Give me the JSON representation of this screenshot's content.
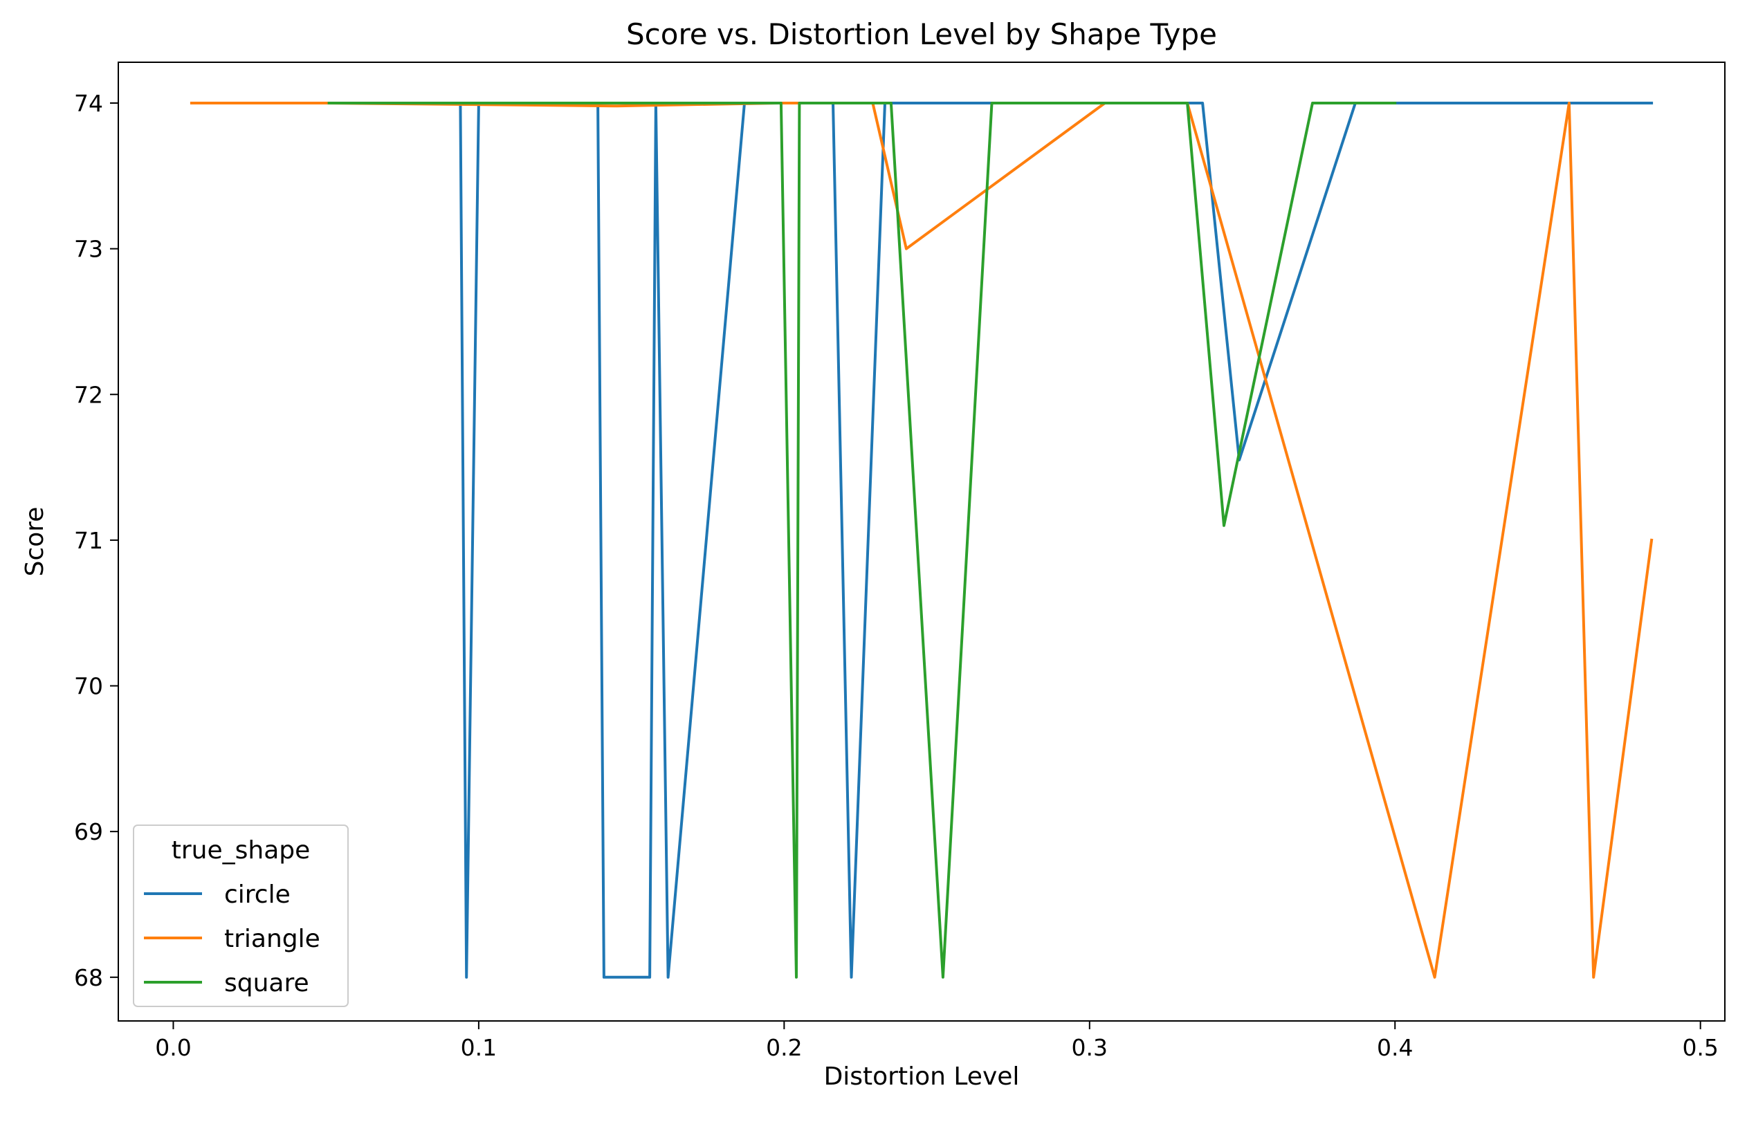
{
  "chart_data": {
    "type": "line",
    "title": "Score vs. Distortion Level by Shape Type",
    "xlabel": "Distortion Level",
    "ylabel": "Score",
    "xlim": [
      -0.018,
      0.508
    ],
    "ylim": [
      67.7,
      74.28
    ],
    "xticks": [
      0.0,
      0.1,
      0.2,
      0.3,
      0.4,
      0.5
    ],
    "xtick_labels": [
      "0.0",
      "0.1",
      "0.2",
      "0.3",
      "0.4",
      "0.5"
    ],
    "yticks": [
      68,
      69,
      70,
      71,
      72,
      73,
      74
    ],
    "ytick_labels": [
      "68",
      "69",
      "70",
      "71",
      "72",
      "73",
      "74"
    ],
    "grid": false,
    "legend": {
      "title": "true_shape",
      "placement": "lower-left"
    },
    "series": [
      {
        "name": "circle",
        "color": "#1f77b4",
        "points": [
          [
            0.094,
            74
          ],
          [
            0.096,
            68
          ],
          [
            0.1,
            74
          ],
          [
            0.139,
            74
          ],
          [
            0.141,
            68
          ],
          [
            0.156,
            68
          ],
          [
            0.158,
            74
          ],
          [
            0.162,
            68
          ],
          [
            0.187,
            74
          ],
          [
            0.216,
            74
          ],
          [
            0.222,
            68
          ],
          [
            0.233,
            74
          ],
          [
            0.337,
            74
          ],
          [
            0.349,
            71.55
          ],
          [
            0.387,
            74
          ],
          [
            0.484,
            74
          ]
        ]
      },
      {
        "name": "triangle",
        "color": "#ff7f0e",
        "points": [
          [
            0.006,
            74
          ],
          [
            0.05,
            74
          ],
          [
            0.145,
            73.98
          ],
          [
            0.198,
            74
          ],
          [
            0.229,
            74
          ],
          [
            0.24,
            73
          ],
          [
            0.305,
            74
          ],
          [
            0.332,
            74
          ],
          [
            0.413,
            68
          ],
          [
            0.457,
            74
          ],
          [
            0.465,
            68
          ],
          [
            0.484,
            71
          ]
        ]
      },
      {
        "name": "square",
        "color": "#2ca02c",
        "points": [
          [
            0.051,
            74
          ],
          [
            0.199,
            74
          ],
          [
            0.204,
            68
          ],
          [
            0.205,
            74
          ],
          [
            0.235,
            74
          ],
          [
            0.252,
            68
          ],
          [
            0.268,
            74
          ],
          [
            0.332,
            74
          ],
          [
            0.344,
            71.1
          ],
          [
            0.373,
            74
          ],
          [
            0.4,
            74
          ]
        ]
      }
    ]
  }
}
